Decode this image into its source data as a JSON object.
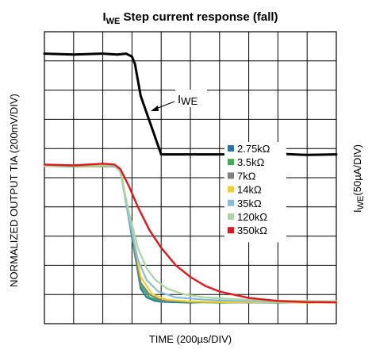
{
  "chart_data": {
    "type": "line",
    "title": {
      "main": "I",
      "sub": "WE",
      "rest": " Step current response (fall)"
    },
    "xlabel": "TIME (200µs/DIV)",
    "ylabel_left": "NORMALIZED OUTPUT TIA (200mV/DIV)",
    "ylabel_right": {
      "main": "I",
      "sub": "WE",
      "rest": "(50µA/DIV)"
    },
    "x_divisions": 10,
    "y_divisions": 10,
    "xlim": [
      0,
      10
    ],
    "ylim": [
      0,
      10
    ],
    "grid": true,
    "legend_position": "right-middle",
    "annotation": {
      "main": "I",
      "sub": "WE",
      "target_x": 4.45,
      "target_y": 8.45
    },
    "series": [
      {
        "name": "IWE",
        "color": "#000000",
        "width": 3.0,
        "in_legend": false,
        "x": [
          0,
          1,
          2,
          2.5,
          2.8,
          3.0,
          3.1,
          3.3,
          4.0,
          4.2,
          5,
          6,
          7,
          8,
          9,
          10
        ],
        "y": [
          9.25,
          9.22,
          9.25,
          9.22,
          9.25,
          9.15,
          8.9,
          7.8,
          5.8,
          5.8,
          5.8,
          5.8,
          5.8,
          5.82,
          5.78,
          5.8
        ]
      },
      {
        "name": "2.75kΩ",
        "color": "#1F77B4",
        "in_legend": true,
        "x": [
          0,
          1,
          2.4,
          2.6,
          3.3,
          3.5,
          3.8,
          4.0,
          5,
          6,
          7,
          8,
          9,
          10
        ],
        "y": [
          5.4,
          5.42,
          5.38,
          5.3,
          1.2,
          0.9,
          0.78,
          0.75,
          0.72,
          0.75,
          0.72,
          0.74,
          0.72,
          0.73
        ]
      },
      {
        "name": "3.5kΩ",
        "color": "#3CB04A",
        "in_legend": true,
        "x": [
          0,
          1,
          2.4,
          2.6,
          3.3,
          3.6,
          4.0,
          5,
          6,
          7,
          8,
          9,
          10
        ],
        "y": [
          5.4,
          5.38,
          5.4,
          5.3,
          1.3,
          0.9,
          0.78,
          0.74,
          0.72,
          0.73,
          0.72,
          0.74,
          0.72
        ]
      },
      {
        "name": "7kΩ",
        "color": "#808080",
        "in_legend": true,
        "x": [
          0,
          1,
          2.4,
          2.6,
          3.3,
          3.6,
          4.0,
          5,
          6,
          7,
          8,
          9,
          10
        ],
        "y": [
          5.4,
          5.4,
          5.38,
          5.3,
          1.4,
          1.0,
          0.8,
          0.75,
          0.74,
          0.72,
          0.74,
          0.72,
          0.73
        ]
      },
      {
        "name": "14kΩ",
        "color": "#F2D027",
        "in_legend": true,
        "x": [
          0,
          1,
          2.4,
          2.6,
          3.3,
          3.7,
          4.2,
          5,
          6,
          7,
          8,
          9,
          10
        ],
        "y": [
          5.42,
          5.4,
          5.4,
          5.3,
          1.6,
          1.0,
          0.82,
          0.76,
          0.74,
          0.73,
          0.74,
          0.72,
          0.73
        ]
      },
      {
        "name": "35kΩ",
        "color": "#86BCE0",
        "in_legend": true,
        "x": [
          0,
          1,
          2.4,
          2.6,
          2.9,
          3.2,
          3.5,
          3.9,
          4.5,
          5.5,
          6.5,
          7.5,
          8.5,
          10
        ],
        "y": [
          5.4,
          5.42,
          5.4,
          5.2,
          3.6,
          2.2,
          1.5,
          1.1,
          0.9,
          0.82,
          0.78,
          0.76,
          0.75,
          0.74
        ]
      },
      {
        "name": "120kΩ",
        "color": "#A8D89A",
        "in_legend": true,
        "x": [
          0,
          1,
          2.4,
          2.6,
          2.9,
          3.2,
          3.5,
          3.8,
          4.2,
          4.8,
          5.5,
          6.5,
          7.5,
          8.5,
          10
        ],
        "y": [
          5.4,
          5.4,
          5.42,
          5.2,
          3.8,
          2.6,
          1.9,
          1.5,
          1.2,
          1.0,
          0.9,
          0.84,
          0.8,
          0.78,
          0.77
        ]
      },
      {
        "name": "350kΩ",
        "color": "#E8141B",
        "width": 2.4,
        "in_legend": true,
        "x": [
          0,
          1,
          2,
          2.4,
          2.6,
          2.9,
          3.2,
          3.6,
          4.0,
          4.5,
          5.0,
          5.5,
          6.0,
          7.0,
          8.0,
          9.0,
          10
        ],
        "y": [
          5.45,
          5.42,
          5.48,
          5.45,
          5.3,
          4.7,
          4.0,
          3.2,
          2.6,
          2.0,
          1.6,
          1.3,
          1.1,
          0.88,
          0.78,
          0.74,
          0.73
        ]
      }
    ]
  }
}
